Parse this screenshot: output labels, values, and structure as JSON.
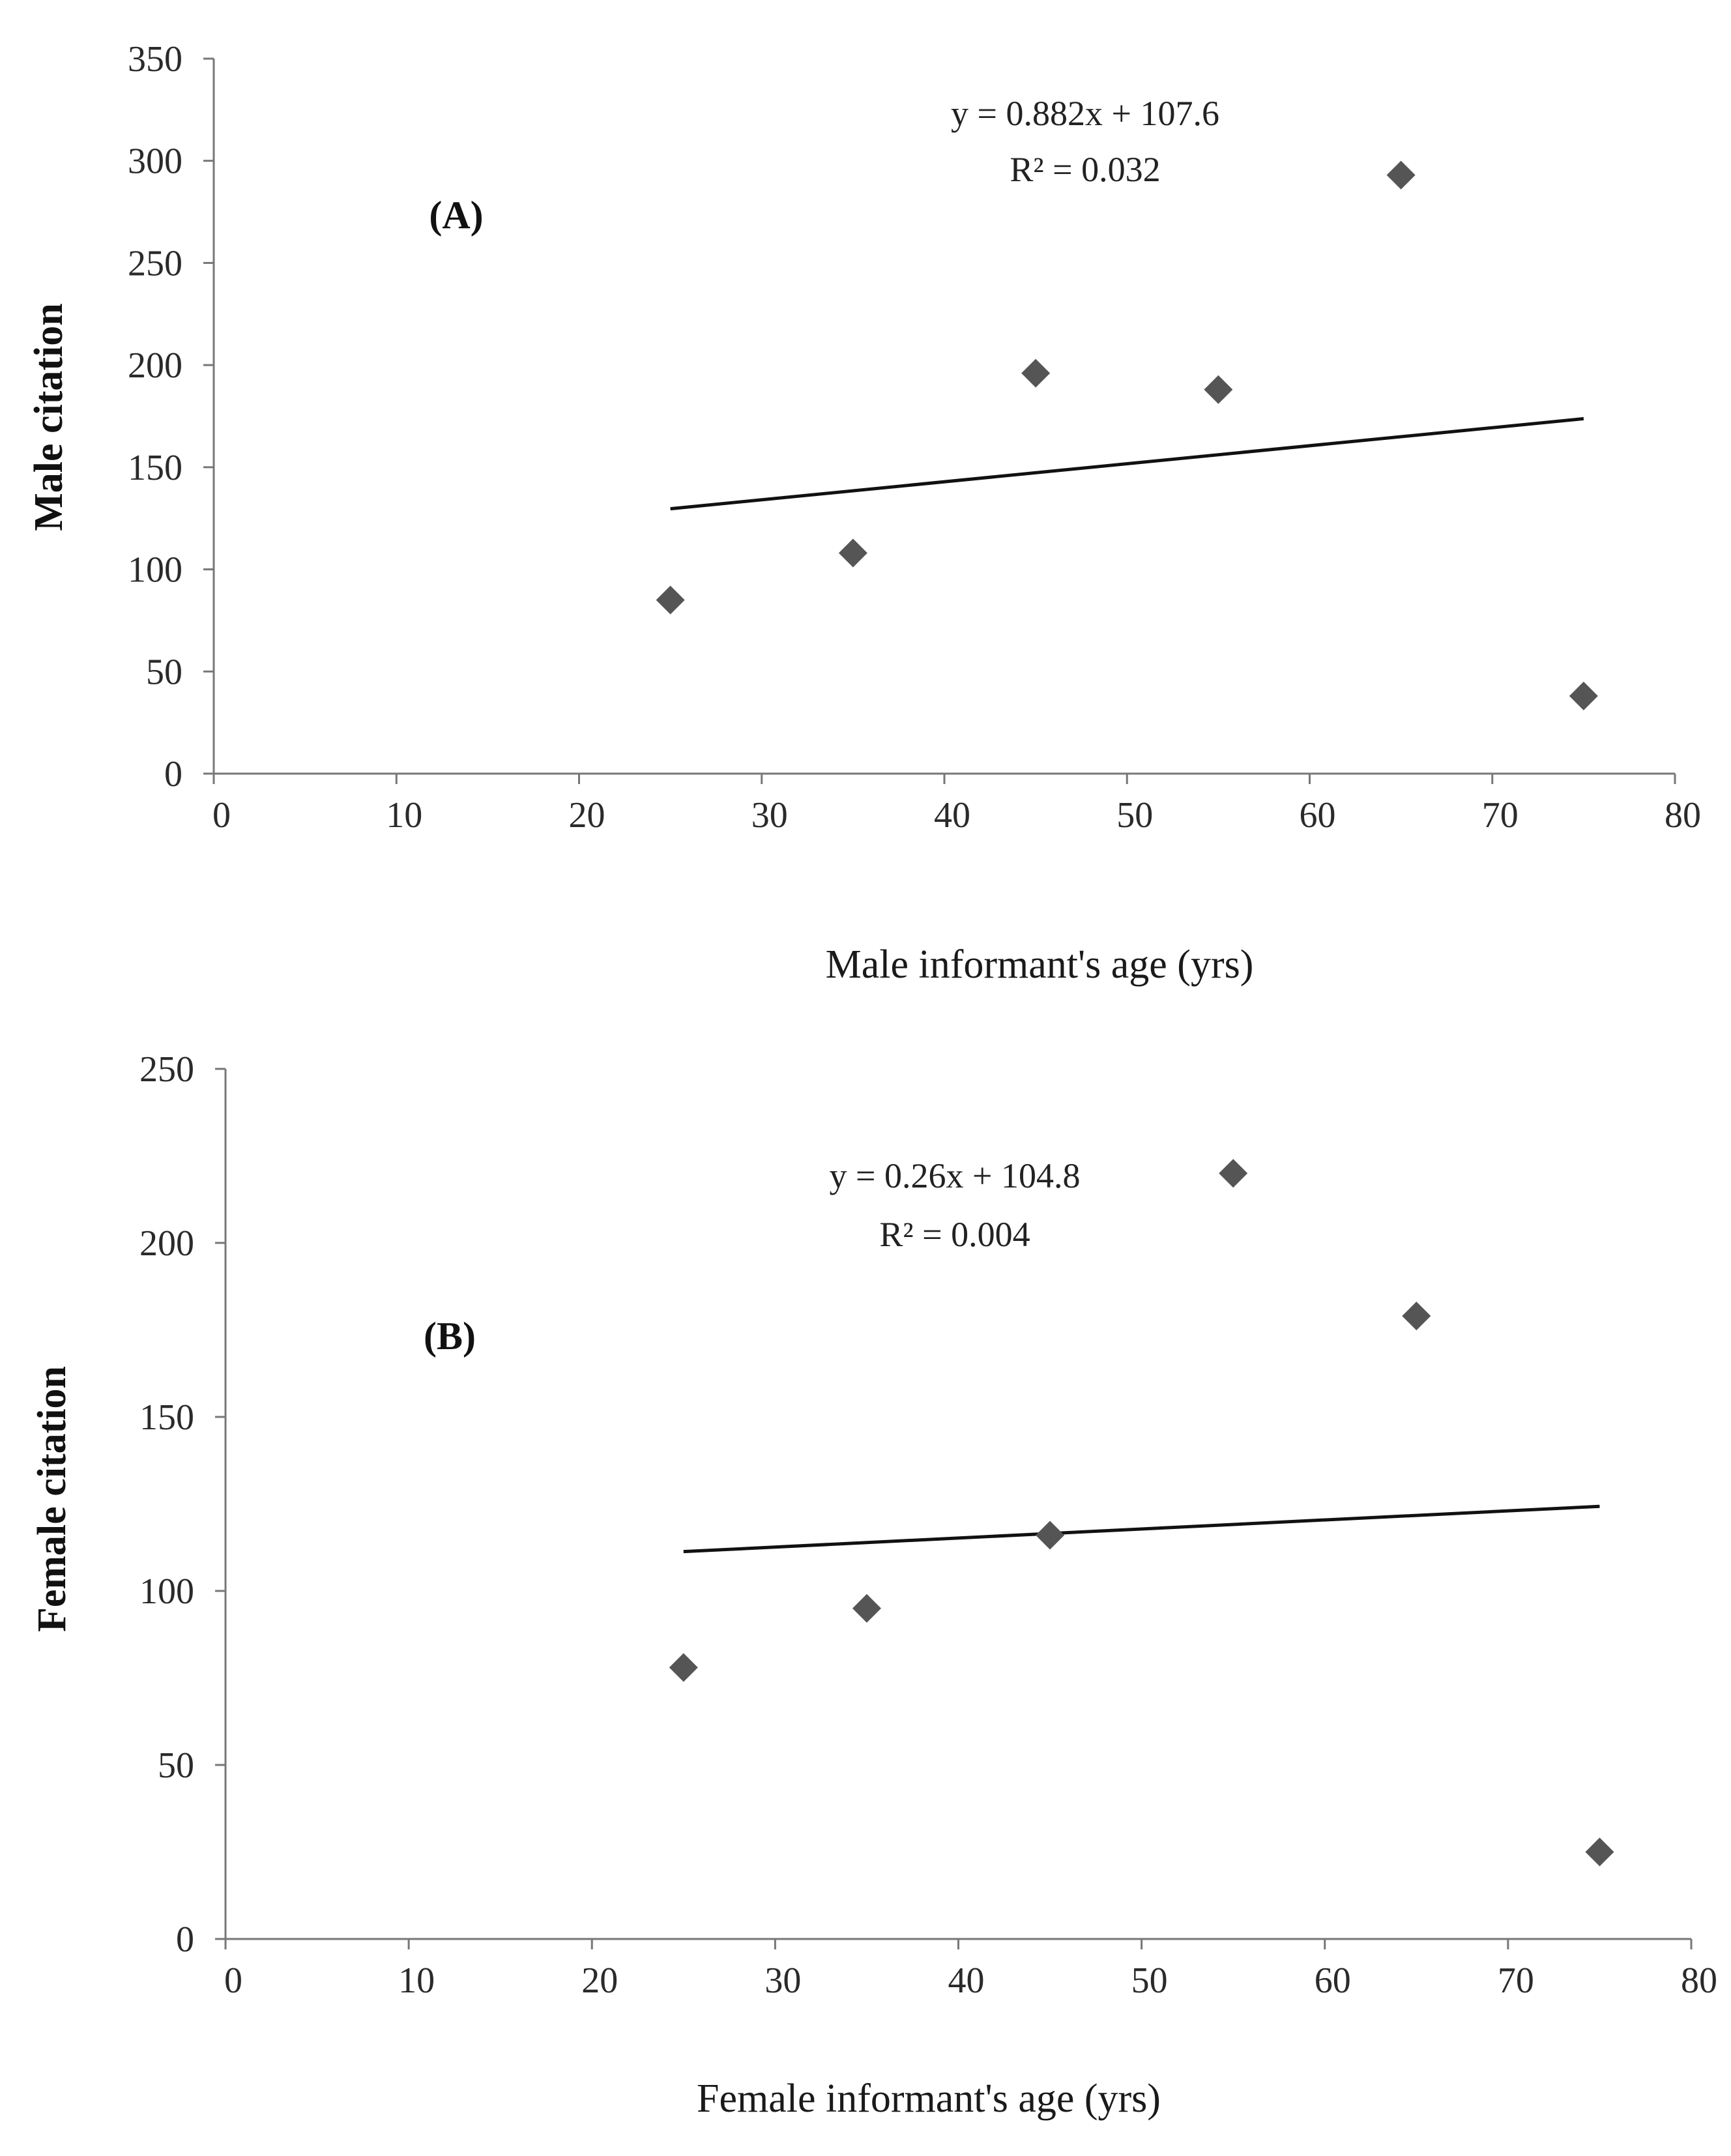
{
  "chart_data": [
    {
      "type": "scatter",
      "panel_label": "(A)",
      "xlabel": "Male informant's age (yrs)",
      "ylabel": "Male citation",
      "xlim": [
        0,
        80
      ],
      "ylim": [
        0,
        350
      ],
      "xticks": [
        0,
        10,
        20,
        30,
        40,
        50,
        60,
        70,
        80
      ],
      "yticks": [
        0,
        50,
        100,
        150,
        200,
        250,
        300,
        350
      ],
      "series": [
        {
          "name": "Male citation",
          "x": [
            25,
            35,
            45,
            55,
            65,
            75
          ],
          "y": [
            85,
            108,
            196,
            188,
            293,
            38
          ]
        }
      ],
      "trendline": {
        "x": [
          25,
          75
        ],
        "y": [
          129.65,
          173.75
        ]
      },
      "equation": "y = 0.882x + 107.6",
      "r_squared": "R² = 0.032"
    },
    {
      "type": "scatter",
      "panel_label": "(B)",
      "xlabel": "Female informant's age (yrs)",
      "ylabel": "Female citation",
      "xlim": [
        0,
        80
      ],
      "ylim": [
        0,
        250
      ],
      "xticks": [
        0,
        10,
        20,
        30,
        40,
        50,
        60,
        70,
        80
      ],
      "yticks": [
        0,
        50,
        100,
        150,
        200,
        250
      ],
      "series": [
        {
          "name": "Female citation",
          "x": [
            25,
            35,
            45,
            55,
            65,
            75
          ],
          "y": [
            78,
            95,
            116,
            220,
            179,
            25
          ]
        }
      ],
      "trendline": {
        "x": [
          25,
          75
        ],
        "y": [
          111.3,
          124.3
        ]
      },
      "equation": "y = 0.26x + 104.8",
      "r_squared": "R² = 0.004"
    }
  ]
}
